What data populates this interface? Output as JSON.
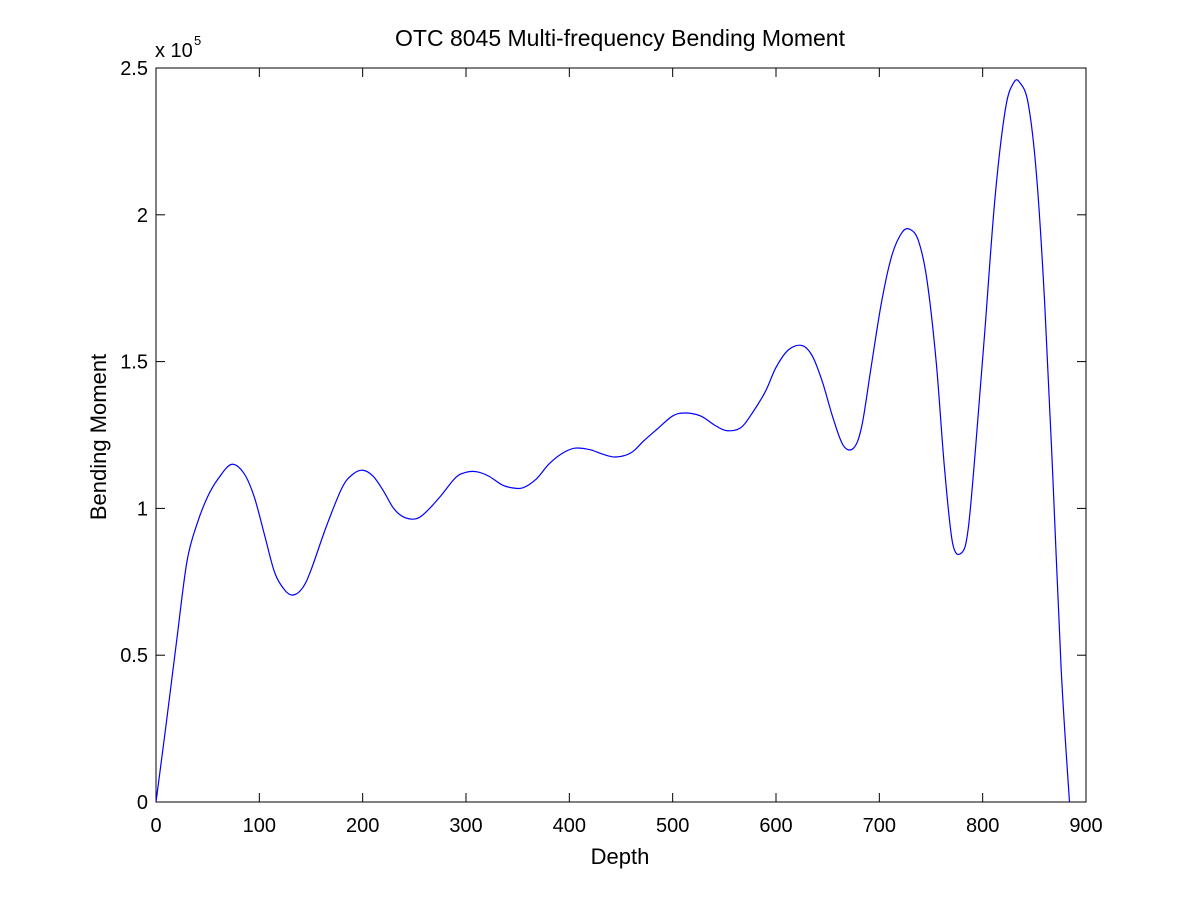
{
  "chart_data": {
    "type": "line",
    "title": "OTC 8045 Multi-frequency Bending Moment",
    "xlabel": "Depth",
    "ylabel": "Bending Moment",
    "y_exponent_prefix": "x 10",
    "y_exponent_power": "5",
    "xlim": [
      0,
      900
    ],
    "ylim": [
      0,
      250000
    ],
    "x_ticks": [
      0,
      100,
      200,
      300,
      400,
      500,
      600,
      700,
      800,
      900
    ],
    "x_tick_labels": [
      "0",
      "100",
      "200",
      "300",
      "400",
      "500",
      "600",
      "700",
      "800",
      "900"
    ],
    "y_ticks": [
      0,
      50000,
      100000,
      150000,
      200000,
      250000
    ],
    "y_tick_labels": [
      "0",
      "0.5",
      "1",
      "1.5",
      "2",
      "2.5"
    ],
    "grid": false,
    "line_color": "#0000ff",
    "series": [
      {
        "x": [
          0,
          10,
          20,
          30,
          40,
          50,
          60,
          73,
          85,
          95,
          105,
          115,
          125,
          133,
          142,
          150,
          165,
          180,
          190,
          200,
          210,
          220,
          230,
          240,
          252,
          262,
          275,
          290,
          300,
          310,
          322,
          335,
          345,
          355,
          368,
          380,
          392,
          405,
          420,
          432,
          445,
          460,
          472,
          485,
          500,
          512,
          527,
          540,
          552,
          566,
          578,
          590,
          600,
          612,
          625,
          635,
          645,
          655,
          665,
          675,
          683,
          692,
          702,
          712,
          722,
          730,
          738,
          746,
          755,
          763,
          771,
          780,
          786,
          793,
          802,
          812,
          822,
          830,
          836,
          844,
          852,
          860,
          868,
          876,
          884
        ],
        "y": [
          0,
          27000,
          55000,
          82000,
          95000,
          104000,
          110000,
          115000,
          112000,
          104000,
          91000,
          78000,
          72000,
          70500,
          73000,
          79000,
          94000,
          107000,
          111500,
          113000,
          111000,
          106000,
          100000,
          97000,
          96500,
          99000,
          104000,
          110500,
          112300,
          112500,
          111000,
          108000,
          107000,
          107000,
          110000,
          115000,
          118500,
          120500,
          120000,
          118500,
          117500,
          119000,
          123000,
          127000,
          131500,
          132500,
          131500,
          128500,
          126500,
          127500,
          133000,
          140000,
          148000,
          154000,
          155500,
          152000,
          143000,
          131000,
          121500,
          120500,
          128000,
          148000,
          170000,
          186000,
          194000,
          195000,
          191000,
          178000,
          150000,
          114000,
          88000,
          85000,
          93000,
          120000,
          160000,
          206000,
          236000,
          245000,
          245000,
          238000,
          214000,
          170000,
          110000,
          45000,
          0
        ]
      }
    ]
  }
}
